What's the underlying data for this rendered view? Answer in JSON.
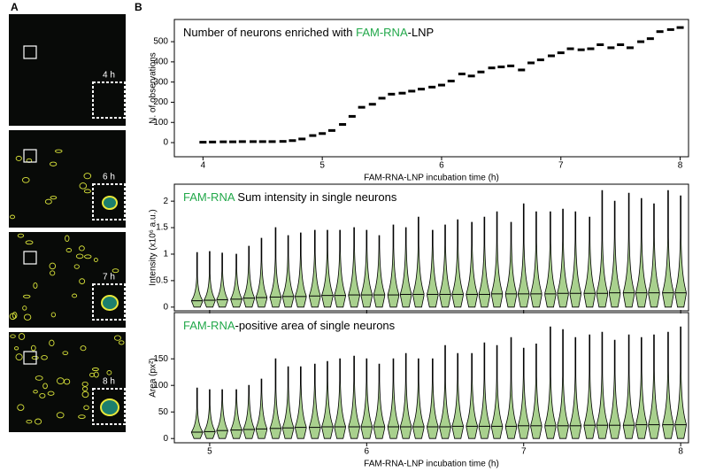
{
  "panels": {
    "label_a": "A",
    "label_b": "B",
    "images": [
      {
        "label": "4 h"
      },
      {
        "label": "6 h"
      },
      {
        "label": "7 h"
      },
      {
        "label": "8 h"
      }
    ]
  },
  "chart_data": [
    {
      "type": "dash",
      "title": [
        {
          "text": "Number of neurons enriched with ",
          "color": "#000000"
        },
        {
          "text": "FAM-RNA",
          "color": "#22a84a"
        },
        {
          "text": "-LNP",
          "color": "#000000"
        }
      ],
      "xlabel": "FAM-RNA-LNP incubation time (h)",
      "ylabel": "N. of observations",
      "color": "#000000",
      "x": [
        4,
        4.08,
        4.17,
        4.25,
        4.33,
        4.42,
        4.5,
        4.58,
        4.67,
        4.75,
        4.83,
        4.92,
        5,
        5.08,
        5.17,
        5.25,
        5.33,
        5.42,
        5.5,
        5.58,
        5.67,
        5.75,
        5.83,
        5.92,
        6,
        6.08,
        6.17,
        6.25,
        6.33,
        6.42,
        6.5,
        6.58,
        6.67,
        6.75,
        6.83,
        6.92,
        7,
        7.08,
        7.17,
        7.25,
        7.33,
        7.42,
        7.5,
        7.58,
        7.67,
        7.75,
        7.83,
        7.92,
        8
      ],
      "values": [
        2,
        3,
        4,
        4,
        5,
        5,
        5,
        5,
        6,
        10,
        18,
        35,
        45,
        60,
        90,
        130,
        175,
        190,
        220,
        240,
        245,
        255,
        265,
        275,
        285,
        305,
        340,
        330,
        350,
        370,
        375,
        380,
        360,
        395,
        410,
        430,
        445,
        465,
        460,
        465,
        485,
        470,
        485,
        470,
        500,
        515,
        550,
        560,
        570
      ],
      "xlim": [
        3.76,
        8.07
      ],
      "ylim": [
        -70,
        610
      ],
      "xticks": [
        4,
        5,
        6,
        7,
        8
      ],
      "yticks": [
        0,
        100,
        200,
        300,
        400,
        500
      ]
    },
    {
      "type": "violin",
      "title": [
        {
          "text": "FAM-RNA",
          "color": "#22a84a"
        },
        {
          "text": " Sum intensity in single neurons",
          "color": "#000000"
        }
      ],
      "ylabel": "Intensity (x10⁶ a.u.)",
      "color": "#a9d18e",
      "x": [
        4.92,
        5,
        5.08,
        5.17,
        5.25,
        5.33,
        5.42,
        5.5,
        5.58,
        5.67,
        5.75,
        5.83,
        5.92,
        6,
        6.08,
        6.17,
        6.25,
        6.33,
        6.42,
        6.5,
        6.58,
        6.67,
        6.75,
        6.83,
        6.92,
        7,
        7.08,
        7.17,
        7.25,
        7.33,
        7.42,
        7.5,
        7.58,
        7.67,
        7.75,
        7.83,
        7.92,
        8
      ],
      "max": [
        1.03,
        1.05,
        1.02,
        1,
        1.15,
        1.3,
        1.5,
        1.35,
        1.4,
        1.45,
        1.45,
        1.45,
        1.5,
        1.45,
        1.35,
        1.55,
        1.5,
        1.7,
        1.45,
        1.55,
        1.65,
        1.6,
        1.7,
        1.8,
        1.6,
        1.95,
        1.8,
        1.8,
        1.85,
        1.8,
        1.7,
        2.2,
        2,
        2.15,
        2.05,
        1.95,
        2.2,
        2.1
      ],
      "median": [
        0.12,
        0.13,
        0.14,
        0.15,
        0.17,
        0.18,
        0.19,
        0.2,
        0.2,
        0.21,
        0.22,
        0.22,
        0.23,
        0.23,
        0.23,
        0.23,
        0.24,
        0.24,
        0.24,
        0.24,
        0.24,
        0.24,
        0.24,
        0.25,
        0.25,
        0.25,
        0.25,
        0.25,
        0.26,
        0.26,
        0.26,
        0.26,
        0.27,
        0.27,
        0.27,
        0.27,
        0.27,
        0.27
      ],
      "xlim": [
        4.775,
        8.05
      ],
      "ylim": [
        -0.07,
        2.32
      ],
      "yticks": [
        0,
        0.5,
        1,
        1.5,
        2
      ]
    },
    {
      "type": "violin",
      "title": [
        {
          "text": "FAM-RNA",
          "color": "#22a84a"
        },
        {
          "text": "-positive area of single neurons",
          "color": "#000000"
        }
      ],
      "xlabel": "FAM-RNA-LNP incubation time (h)",
      "ylabel": "Area (px²)",
      "color": "#a9d18e",
      "x": [
        4.92,
        5,
        5.08,
        5.17,
        5.25,
        5.33,
        5.42,
        5.5,
        5.58,
        5.67,
        5.75,
        5.83,
        5.92,
        6,
        6.08,
        6.17,
        6.25,
        6.33,
        6.42,
        6.5,
        6.58,
        6.67,
        6.75,
        6.83,
        6.92,
        7,
        7.08,
        7.17,
        7.25,
        7.33,
        7.42,
        7.5,
        7.58,
        7.67,
        7.75,
        7.83,
        7.92,
        8
      ],
      "max": [
        95,
        92,
        92,
        92,
        100,
        112,
        150,
        135,
        135,
        140,
        145,
        150,
        155,
        150,
        140,
        150,
        160,
        150,
        150,
        175,
        160,
        160,
        180,
        175,
        190,
        170,
        178,
        210,
        205,
        190,
        195,
        200,
        185,
        195,
        190,
        195,
        200,
        210
      ],
      "median": [
        12,
        13,
        15,
        16,
        17,
        18,
        19,
        20,
        21,
        21,
        22,
        22,
        22,
        22,
        22,
        22,
        22,
        22,
        22,
        22,
        23,
        23,
        23,
        23,
        23,
        24,
        24,
        24,
        24,
        24,
        25,
        25,
        25,
        25,
        26,
        26,
        26,
        26
      ],
      "xlim": [
        4.775,
        8.05
      ],
      "ylim": [
        -8,
        237
      ],
      "xticks": [
        5,
        6,
        7,
        8
      ],
      "yticks": [
        0,
        50,
        100,
        150
      ]
    }
  ]
}
